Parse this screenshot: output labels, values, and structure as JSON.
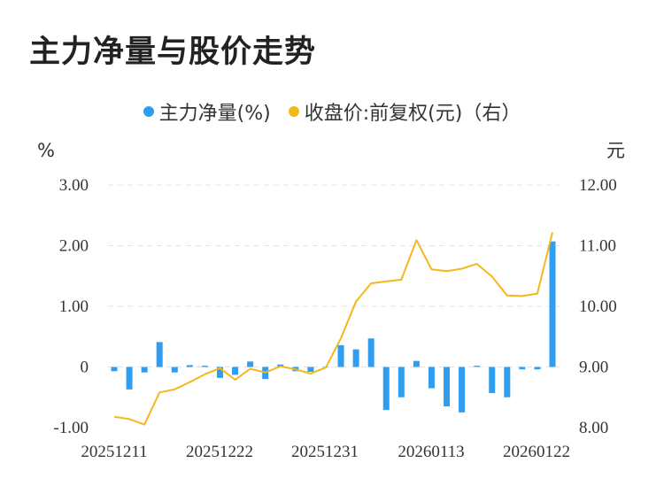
{
  "chart_data": {
    "type": "bar+line",
    "title": "主力净量与股价走势",
    "left_unit": "%",
    "right_unit": "元",
    "left_axis": {
      "min": -1,
      "max": 3,
      "ticks": [
        3,
        2,
        1,
        0,
        -1
      ],
      "tick_labels": [
        "3.00",
        "2.00",
        "1.00",
        "0",
        "-1.00"
      ]
    },
    "right_axis": {
      "min": 8,
      "max": 12,
      "ticks": [
        12,
        11,
        10,
        9,
        8
      ],
      "tick_labels": [
        "12.00",
        "11.00",
        "10.00",
        "9.00",
        "8.00"
      ]
    },
    "x_tick_labels": [
      "20251211",
      "20251222",
      "20251231",
      "20260113",
      "20260122"
    ],
    "series": [
      {
        "name": "主力净量(%)",
        "kind": "bar",
        "axis": "left",
        "color": "#2f9ef0",
        "values": [
          -0.07,
          -0.37,
          -0.09,
          0.41,
          -0.09,
          0.03,
          0.02,
          -0.18,
          -0.13,
          0.09,
          -0.2,
          0.04,
          -0.07,
          -0.08,
          0.0,
          0.36,
          0.29,
          0.47,
          -0.71,
          -0.5,
          0.1,
          -0.35,
          -0.65,
          -0.75,
          0.02,
          -0.43,
          -0.5,
          -0.04,
          -0.04,
          2.07
        ]
      },
      {
        "name": "收盘价:前复权(元)（右）",
        "kind": "line",
        "axis": "right",
        "color": "#f5b71b",
        "values": [
          8.18,
          8.14,
          8.05,
          8.58,
          8.63,
          8.75,
          8.88,
          8.98,
          8.79,
          8.97,
          8.91,
          9.01,
          8.96,
          8.89,
          8.99,
          9.47,
          10.08,
          10.38,
          10.41,
          10.44,
          11.09,
          10.61,
          10.58,
          10.62,
          10.7,
          10.49,
          10.18,
          10.17,
          10.21,
          11.22
        ]
      }
    ],
    "grid": true,
    "legend_position": "top-center"
  }
}
